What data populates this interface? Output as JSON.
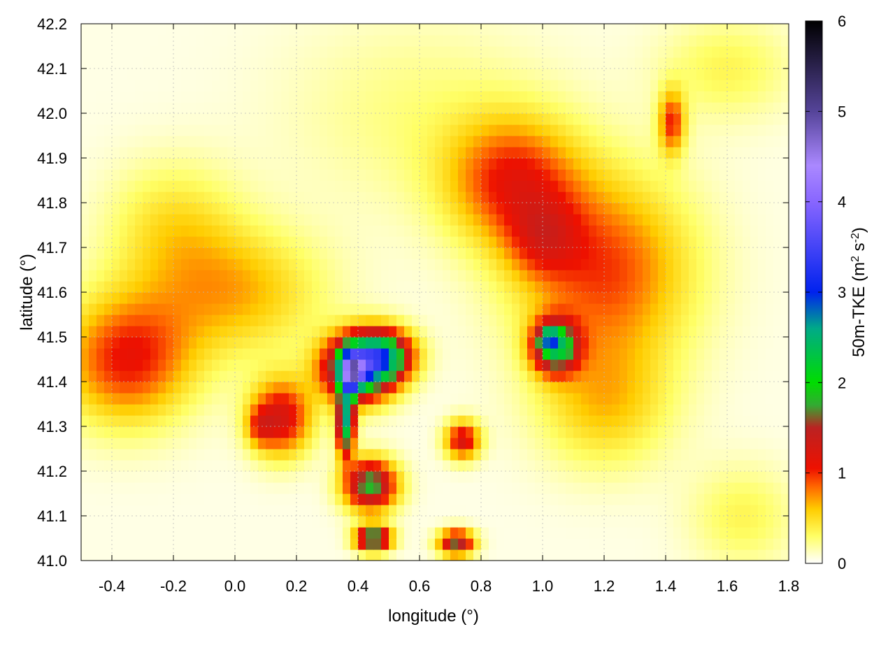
{
  "chart_data": {
    "type": "heatmap",
    "xlabel": "longitude (°)",
    "ylabel": "latitude (°)",
    "colorbar_label": "50m-TKE (m² s⁻²)",
    "colorbar_label_parts": {
      "main": "50m-TKE (m",
      "sup1": "2",
      "mid": " s",
      "sup2": "-2",
      "end": ")"
    },
    "xlim": [
      -0.5,
      1.8
    ],
    "ylim": [
      41.0,
      42.2
    ],
    "clim": [
      0,
      6
    ],
    "x_ticks": [
      -0.4,
      -0.2,
      0.0,
      0.2,
      0.4,
      0.6,
      0.8,
      1.0,
      1.2,
      1.4,
      1.6,
      1.8
    ],
    "x_tick_labels": [
      "-0.4",
      "-0.2",
      "0.0",
      "0.2",
      "0.4",
      "0.6",
      "0.8",
      "1.0",
      "1.2",
      "1.4",
      "1.6",
      "1.8"
    ],
    "y_ticks": [
      41.0,
      41.1,
      41.2,
      41.3,
      41.4,
      41.5,
      41.6,
      41.7,
      41.8,
      41.9,
      42.0,
      42.1,
      42.2
    ],
    "y_tick_labels": [
      "41.0",
      "41.1",
      "41.2",
      "41.3",
      "41.4",
      "41.5",
      "41.6",
      "41.7",
      "41.8",
      "41.9",
      "42.0",
      "42.1",
      "42.2"
    ],
    "colorbar_ticks": [
      0,
      1,
      2,
      3,
      4,
      5,
      6
    ],
    "colorbar_tick_labels": [
      "0",
      "1",
      "2",
      "3",
      "4",
      "5",
      "6"
    ],
    "grid": true,
    "colormap": [
      {
        "value": 0.0,
        "color": "#ffffff"
      },
      {
        "value": 0.3,
        "color": "#ffff66"
      },
      {
        "value": 0.6,
        "color": "#ffcc00"
      },
      {
        "value": 0.85,
        "color": "#ff6600"
      },
      {
        "value": 1.05,
        "color": "#ee1100"
      },
      {
        "value": 1.5,
        "color": "#bb2222"
      },
      {
        "value": 1.75,
        "color": "#33aa33"
      },
      {
        "value": 2.0,
        "color": "#00dd00"
      },
      {
        "value": 2.6,
        "color": "#00aa88"
      },
      {
        "value": 3.0,
        "color": "#0022ee"
      },
      {
        "value": 4.0,
        "color": "#8866ff"
      },
      {
        "value": 4.4,
        "color": "#aa88ff"
      },
      {
        "value": 5.0,
        "color": "#554499"
      },
      {
        "value": 6.0,
        "color": "#000000"
      }
    ],
    "features": [
      {
        "lon": 0.4,
        "lat": 41.43,
        "slon": 0.08,
        "slat": 0.05,
        "value": 2.4
      },
      {
        "lon": 0.48,
        "lat": 41.46,
        "slon": 0.07,
        "slat": 0.04,
        "value": 1.9
      },
      {
        "lon": 0.38,
        "lat": 41.42,
        "slon": 0.025,
        "slat": 0.03,
        "value": 2.2
      },
      {
        "lon": 0.36,
        "lat": 41.31,
        "slon": 0.02,
        "slat": 0.05,
        "value": 2.4
      },
      {
        "lon": 0.15,
        "lat": 41.32,
        "slon": 0.07,
        "slat": 0.06,
        "value": 1.2
      },
      {
        "lon": 0.08,
        "lat": 41.3,
        "slon": 0.03,
        "slat": 0.03,
        "value": 0.5
      },
      {
        "lon": 0.44,
        "lat": 41.17,
        "slon": 0.06,
        "slat": 0.04,
        "value": 1.8
      },
      {
        "lon": 0.45,
        "lat": 41.05,
        "slon": 0.04,
        "slat": 0.02,
        "value": 2.0
      },
      {
        "lon": 0.72,
        "lat": 41.04,
        "slon": 0.04,
        "slat": 0.02,
        "value": 1.6
      },
      {
        "lon": 0.74,
        "lat": 41.27,
        "slon": 0.04,
        "slat": 0.03,
        "value": 1.2
      },
      {
        "lon": 1.04,
        "lat": 41.48,
        "slon": 0.05,
        "slat": 0.04,
        "value": 2.0
      },
      {
        "lon": 1.02,
        "lat": 41.5,
        "slon": 0.02,
        "slat": 0.015,
        "value": 1.0
      },
      {
        "lon": 1.42,
        "lat": 41.98,
        "slon": 0.03,
        "slat": 0.05,
        "value": 0.9
      },
      {
        "lon": -0.35,
        "lat": 41.45,
        "slon": 0.15,
        "slat": 0.1,
        "value": 1.0
      },
      {
        "lon": 0.0,
        "lat": 41.6,
        "slon": 0.2,
        "slat": 0.1,
        "value": 0.6
      },
      {
        "lon": 1.2,
        "lat": 41.65,
        "slon": 0.2,
        "slat": 0.15,
        "value": 0.9
      },
      {
        "lon": 0.9,
        "lat": 41.85,
        "slon": 0.15,
        "slat": 0.1,
        "value": 0.9
      },
      {
        "lon": 1.0,
        "lat": 41.72,
        "slon": 0.08,
        "slat": 0.06,
        "value": 0.5
      },
      {
        "lon": -0.2,
        "lat": 41.75,
        "slon": 0.15,
        "slat": 0.1,
        "value": 0.4
      },
      {
        "lon": 0.6,
        "lat": 42.0,
        "slon": 0.3,
        "slat": 0.15,
        "value": 0.2
      },
      {
        "lon": 1.6,
        "lat": 42.1,
        "slon": 0.15,
        "slat": 0.08,
        "value": 0.3
      },
      {
        "lon": 1.65,
        "lat": 41.1,
        "slon": 0.12,
        "slat": 0.08,
        "value": 0.3
      },
      {
        "lon": 1.2,
        "lat": 41.35,
        "slon": 0.15,
        "slat": 0.1,
        "value": 0.5
      }
    ]
  }
}
